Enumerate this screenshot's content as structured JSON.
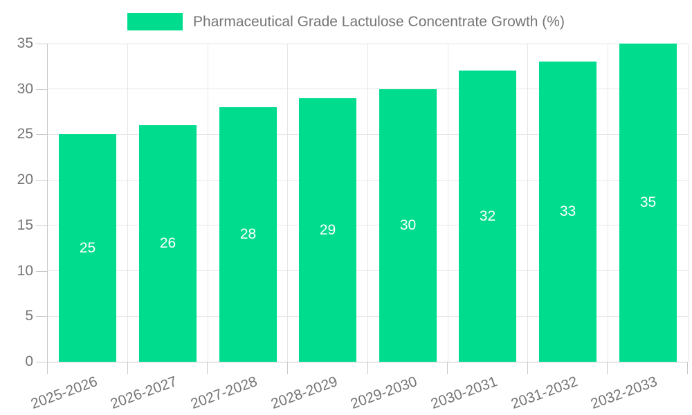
{
  "chart_data": {
    "type": "bar",
    "title": "Pharmaceutical Grade Lactulose Concentrate Growth (%)",
    "legend": {
      "label": "Pharmaceutical Grade Lactulose Concentrate Growth (%)",
      "position": "top-center"
    },
    "categories": [
      "2025-2026",
      "2026-2027",
      "2027-2028",
      "2028-2029",
      "2029-2030",
      "2030-2031",
      "2031-2032",
      "2032-2033"
    ],
    "values": [
      25,
      26,
      28,
      29,
      30,
      32,
      33,
      35
    ],
    "value_labels": [
      "25",
      "26",
      "28",
      "29",
      "30",
      "32",
      "33",
      "35"
    ],
    "value_label_position": "inside-center",
    "xlabel": "",
    "ylabel": "",
    "ylim": [
      0,
      35
    ],
    "yticks": [
      0,
      5,
      10,
      15,
      20,
      25,
      30,
      35
    ],
    "grid": true,
    "xtick_rotation_deg": -20,
    "colors": {
      "bar": "#00DC8E",
      "value_label": "#ffffff",
      "axis_text": "#757575",
      "legend_text": "#757575",
      "grid_line": "#e6e6e6",
      "axis_line": "#c9c9c9",
      "background": "#ffffff"
    }
  }
}
